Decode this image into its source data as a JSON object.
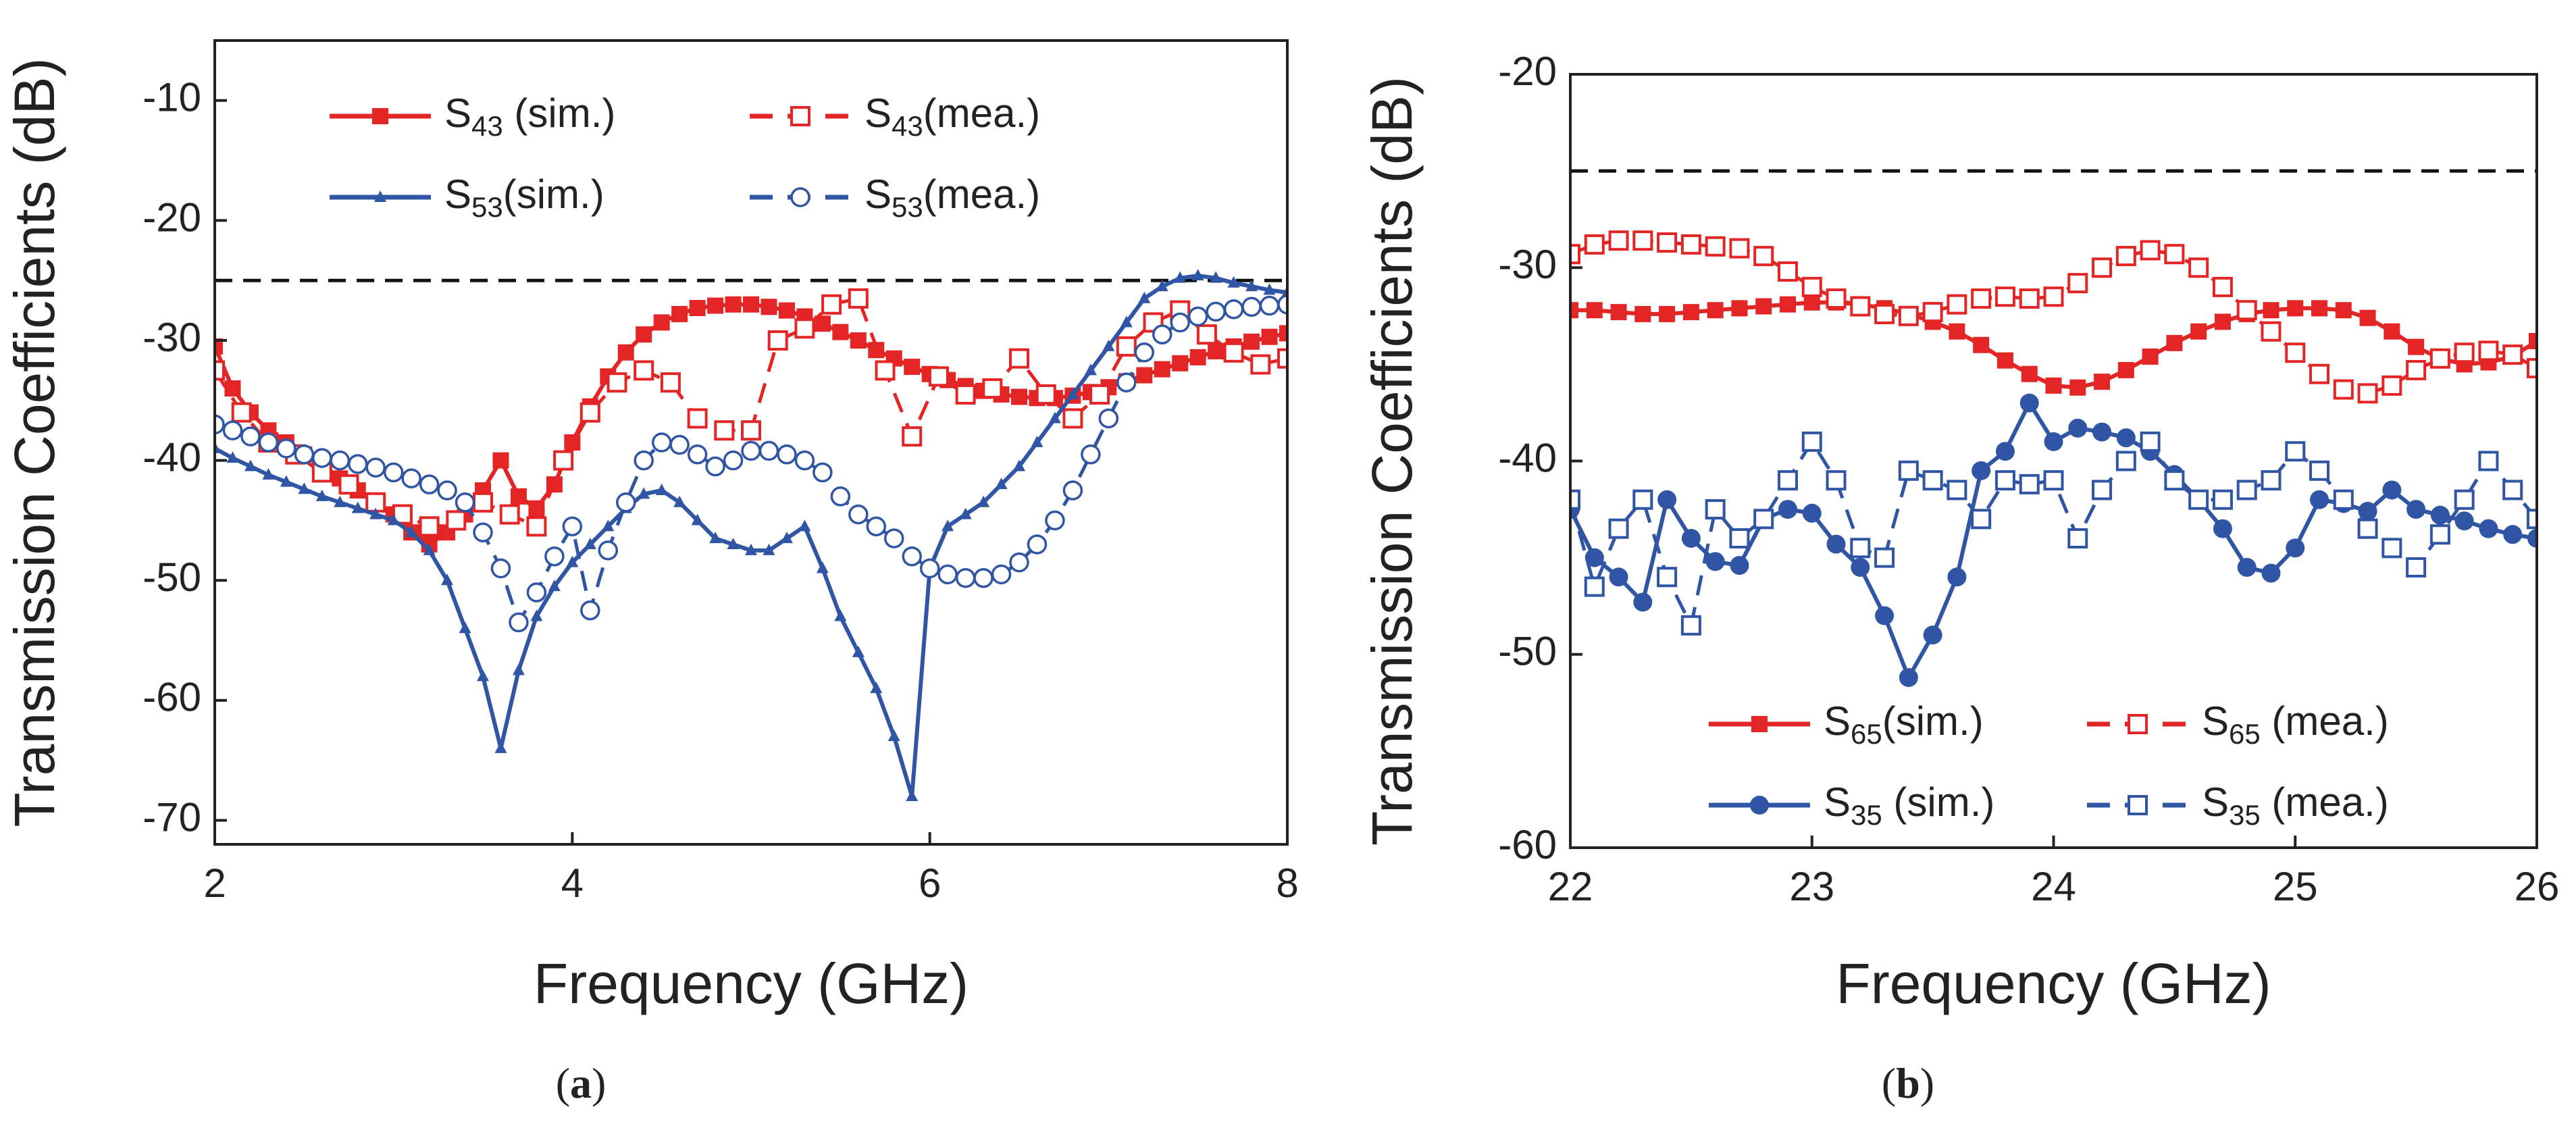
{
  "chart_data": [
    {
      "type": "line",
      "panel_label": "(a)",
      "panel_letter": "a",
      "xlabel": "Frequency (GHz)",
      "ylabel": "Transmission Coefficients (dB)",
      "xlim": [
        2,
        8
      ],
      "ylim": [
        -72,
        -5
      ],
      "xticks": [
        2,
        4,
        6,
        8
      ],
      "yticks": [
        -70,
        -60,
        -50,
        -40,
        -30,
        -20,
        -10
      ],
      "reference_line": {
        "y": -25,
        "style": "dashed",
        "color": "#111111"
      },
      "legend_position": "top",
      "series": [
        {
          "name": "S43 (sim.)",
          "label_main": "S",
          "label_sub": "43",
          "label_tail": " (sim.)",
          "color": "#e32525",
          "line": "solid",
          "marker": "square-filled",
          "x": [
            2,
            2.1,
            2.2,
            2.3,
            2.4,
            2.5,
            2.6,
            2.7,
            2.8,
            2.9,
            3,
            3.1,
            3.2,
            3.3,
            3.4,
            3.5,
            3.6,
            3.7,
            3.8,
            3.9,
            4,
            4.1,
            4.2,
            4.3,
            4.4,
            4.5,
            4.6,
            4.7,
            4.8,
            4.9,
            5,
            5.1,
            5.2,
            5.3,
            5.4,
            5.5,
            5.6,
            5.7,
            5.8,
            5.9,
            6,
            6.1,
            6.2,
            6.3,
            6.4,
            6.5,
            6.6,
            6.7,
            6.8,
            6.9,
            7,
            7.1,
            7.2,
            7.3,
            7.4,
            7.5,
            7.6,
            7.7,
            7.8,
            7.9,
            8
          ],
          "y": [
            -30.5,
            -34,
            -36,
            -37.5,
            -38.5,
            -39.5,
            -40.5,
            -41.5,
            -42.5,
            -43.5,
            -44.5,
            -46,
            -47,
            -46,
            -44.5,
            -42.5,
            -40,
            -43,
            -44,
            -42,
            -38.5,
            -35.5,
            -33,
            -31,
            -29.5,
            -28.5,
            -27.8,
            -27.3,
            -27.1,
            -27,
            -27,
            -27.2,
            -27.5,
            -28,
            -28.6,
            -29.3,
            -30,
            -30.8,
            -31.5,
            -32.2,
            -32.8,
            -33.3,
            -33.8,
            -34.2,
            -34.5,
            -34.7,
            -34.8,
            -34.8,
            -34.6,
            -34.3,
            -33.9,
            -33.4,
            -32.9,
            -32.4,
            -31.9,
            -31.4,
            -30.9,
            -30.5,
            -30.1,
            -29.7,
            -29.4
          ]
        },
        {
          "name": "S43(mea.)",
          "label_main": "S",
          "label_sub": "43",
          "label_tail": "(mea.)",
          "color": "#e32525",
          "line": "dashed",
          "marker": "square-open",
          "x": [
            2,
            2.15,
            2.3,
            2.45,
            2.6,
            2.75,
            2.9,
            3.05,
            3.2,
            3.35,
            3.5,
            3.65,
            3.8,
            3.95,
            4.1,
            4.25,
            4.4,
            4.55,
            4.7,
            4.85,
            5,
            5.15,
            5.3,
            5.45,
            5.6,
            5.75,
            5.9,
            6.05,
            6.2,
            6.35,
            6.5,
            6.65,
            6.8,
            6.95,
            7.1,
            7.25,
            7.4,
            7.55,
            7.7,
            7.85,
            8
          ],
          "y": [
            -32.5,
            -36,
            -38.5,
            -39.5,
            -41,
            -42,
            -43.5,
            -44.5,
            -45.5,
            -45,
            -43.5,
            -44.5,
            -45.5,
            -40,
            -36,
            -33.5,
            -32.5,
            -33.5,
            -36.5,
            -37.5,
            -37.5,
            -30,
            -29,
            -27,
            -26.5,
            -32.5,
            -38,
            -33,
            -34.5,
            -34,
            -31.5,
            -34.5,
            -36.5,
            -34.5,
            -30.5,
            -28.5,
            -27.5,
            -29.5,
            -31,
            -32,
            -31.5
          ]
        },
        {
          "name": "S53(sim.)",
          "label_main": "S",
          "label_sub": "53",
          "label_tail": "(sim.)",
          "color": "#2f55a4",
          "line": "solid",
          "marker": "triangle-small",
          "x": [
            2,
            2.1,
            2.2,
            2.3,
            2.4,
            2.5,
            2.6,
            2.7,
            2.8,
            2.9,
            3,
            3.1,
            3.2,
            3.3,
            3.4,
            3.5,
            3.6,
            3.7,
            3.8,
            3.9,
            4,
            4.1,
            4.2,
            4.3,
            4.4,
            4.5,
            4.6,
            4.7,
            4.8,
            4.9,
            5,
            5.1,
            5.2,
            5.3,
            5.4,
            5.5,
            5.6,
            5.7,
            5.8,
            5.9,
            6,
            6.1,
            6.2,
            6.3,
            6.4,
            6.5,
            6.6,
            6.7,
            6.8,
            6.9,
            7,
            7.1,
            7.2,
            7.3,
            7.4,
            7.5,
            7.6,
            7.7,
            7.8,
            7.9,
            8
          ],
          "y": [
            -39,
            -39.8,
            -40.5,
            -41.2,
            -41.8,
            -42.4,
            -43,
            -43.5,
            -44,
            -44.5,
            -45,
            -46,
            -47.5,
            -50,
            -54,
            -58,
            -64,
            -57.5,
            -53,
            -50.5,
            -48.5,
            -47,
            -45.5,
            -44,
            -42.8,
            -42.5,
            -43.5,
            -45,
            -46.5,
            -47,
            -47.5,
            -47.5,
            -46.5,
            -45.5,
            -49,
            -53,
            -56,
            -59,
            -63,
            -68,
            -49,
            -45.5,
            -44.5,
            -43.5,
            -42,
            -40.5,
            -38.5,
            -36.5,
            -34.5,
            -32.5,
            -30.5,
            -28.5,
            -26.5,
            -25.5,
            -24.8,
            -24.6,
            -24.8,
            -25.2,
            -25.5,
            -25.8,
            -26
          ]
        },
        {
          "name": "S53(mea.)",
          "label_main": "S",
          "label_sub": "53",
          "label_tail": "(mea.)",
          "color": "#2f55a4",
          "line": "dashed",
          "marker": "circle-open",
          "x": [
            2,
            2.1,
            2.2,
            2.3,
            2.4,
            2.5,
            2.6,
            2.7,
            2.8,
            2.9,
            3,
            3.1,
            3.2,
            3.3,
            3.4,
            3.5,
            3.6,
            3.7,
            3.8,
            3.9,
            4,
            4.1,
            4.2,
            4.3,
            4.4,
            4.5,
            4.6,
            4.7,
            4.8,
            4.9,
            5,
            5.1,
            5.2,
            5.3,
            5.4,
            5.5,
            5.6,
            5.7,
            5.8,
            5.9,
            6,
            6.1,
            6.2,
            6.3,
            6.4,
            6.5,
            6.6,
            6.7,
            6.8,
            6.9,
            7,
            7.1,
            7.2,
            7.3,
            7.4,
            7.5,
            7.6,
            7.7,
            7.8,
            7.9,
            8
          ],
          "y": [
            -37,
            -37.5,
            -38,
            -38.5,
            -39,
            -39.5,
            -39.8,
            -40,
            -40.3,
            -40.6,
            -41,
            -41.5,
            -42,
            -42.5,
            -43.5,
            -46,
            -49,
            -53.5,
            -51,
            -48,
            -45.5,
            -52.5,
            -47.5,
            -43.5,
            -40,
            -38.5,
            -38.7,
            -39.5,
            -40.5,
            -40,
            -39.2,
            -39.2,
            -39.5,
            -40,
            -41,
            -43,
            -44.5,
            -45.5,
            -46.5,
            -48,
            -49,
            -49.5,
            -49.8,
            -49.8,
            -49.5,
            -48.5,
            -47,
            -45,
            -42.5,
            -39.5,
            -36.5,
            -33.5,
            -31,
            -29.5,
            -28.5,
            -28,
            -27.6,
            -27.4,
            -27.2,
            -27.1,
            -27
          ]
        }
      ]
    },
    {
      "type": "line",
      "panel_label": "(b)",
      "panel_letter": "b",
      "xlabel": "Frequency (GHz)",
      "ylabel": "Transmission Coefficients (dB)",
      "xlim": [
        22,
        26
      ],
      "ylim": [
        -60,
        -20
      ],
      "xticks": [
        22,
        23,
        24,
        25,
        26
      ],
      "yticks": [
        -60,
        -50,
        -40,
        -30,
        -20
      ],
      "reference_line": {
        "y": -25,
        "style": "dashed",
        "color": "#111111"
      },
      "legend_position": "bottom",
      "series": [
        {
          "name": "S65(sim.)",
          "label_main": "S",
          "label_sub": "65",
          "label_tail": "(sim.)",
          "color": "#e32525",
          "line": "solid",
          "marker": "square-filled",
          "x": [
            22,
            22.1,
            22.2,
            22.3,
            22.4,
            22.5,
            22.6,
            22.7,
            22.8,
            22.9,
            23,
            23.1,
            23.2,
            23.3,
            23.4,
            23.5,
            23.6,
            23.7,
            23.8,
            23.9,
            24,
            24.1,
            24.2,
            24.3,
            24.4,
            24.5,
            24.6,
            24.7,
            24.8,
            24.9,
            25,
            25.1,
            25.2,
            25.3,
            25.4,
            25.5,
            25.6,
            25.7,
            25.8,
            25.9,
            26
          ],
          "y": [
            -32.2,
            -32.2,
            -32.3,
            -32.4,
            -32.4,
            -32.3,
            -32.2,
            -32.1,
            -32,
            -31.9,
            -31.8,
            -31.8,
            -31.9,
            -32.1,
            -32.4,
            -32.8,
            -33.3,
            -34,
            -34.8,
            -35.5,
            -36.1,
            -36.2,
            -35.9,
            -35.3,
            -34.6,
            -33.9,
            -33.3,
            -32.8,
            -32.4,
            -32.2,
            -32.1,
            -32.1,
            -32.2,
            -32.6,
            -33.3,
            -34.1,
            -34.7,
            -35,
            -34.9,
            -34.6,
            -33.8
          ]
        },
        {
          "name": "S65 (mea.)",
          "label_main": "S",
          "label_sub": "65",
          "label_tail": " (mea.)",
          "color": "#e32525",
          "line": "dashed",
          "marker": "square-open",
          "x": [
            22,
            22.1,
            22.2,
            22.3,
            22.4,
            22.5,
            22.6,
            22.7,
            22.8,
            22.9,
            23,
            23.1,
            23.2,
            23.3,
            23.4,
            23.5,
            23.6,
            23.7,
            23.8,
            23.9,
            24,
            24.1,
            24.2,
            24.3,
            24.4,
            24.5,
            24.6,
            24.7,
            24.8,
            24.9,
            25,
            25.1,
            25.2,
            25.3,
            25.4,
            25.5,
            25.6,
            25.7,
            25.8,
            25.9,
            26
          ],
          "y": [
            -29.3,
            -28.8,
            -28.6,
            -28.6,
            -28.7,
            -28.8,
            -28.9,
            -29,
            -29.4,
            -30.2,
            -31,
            -31.6,
            -32,
            -32.4,
            -32.5,
            -32.3,
            -31.9,
            -31.6,
            -31.5,
            -31.6,
            -31.5,
            -30.8,
            -30,
            -29.4,
            -29.1,
            -29.3,
            -30,
            -31,
            -32.2,
            -33.3,
            -34.4,
            -35.5,
            -36.3,
            -36.5,
            -36.1,
            -35.3,
            -34.7,
            -34.4,
            -34.3,
            -34.5,
            -35.2
          ]
        },
        {
          "name": "S35 (sim.)",
          "label_main": "S",
          "label_sub": "35",
          "label_tail": " (sim.)",
          "color": "#2f55a4",
          "line": "solid",
          "marker": "circle-filled",
          "x": [
            22,
            22.1,
            22.2,
            22.3,
            22.4,
            22.5,
            22.6,
            22.7,
            22.8,
            22.9,
            23,
            23.1,
            23.2,
            23.3,
            23.4,
            23.5,
            23.6,
            23.7,
            23.8,
            23.9,
            24,
            24.1,
            24.2,
            24.3,
            24.4,
            24.5,
            24.6,
            24.7,
            24.8,
            24.9,
            25,
            25.1,
            25.2,
            25.3,
            25.4,
            25.5,
            25.6,
            25.7,
            25.8,
            25.9,
            26
          ],
          "y": [
            -42.5,
            -45,
            -46,
            -47.3,
            -42,
            -44,
            -45.2,
            -45.4,
            -43,
            -42.5,
            -42.7,
            -44.3,
            -45.5,
            -48,
            -51.2,
            -49,
            -46,
            -40.5,
            -39.5,
            -37,
            -39,
            -38.3,
            -38.5,
            -38.8,
            -39.5,
            -40.7,
            -42,
            -43.5,
            -45.5,
            -45.8,
            -44.5,
            -42,
            -42.2,
            -42.6,
            -41.5,
            -42.5,
            -42.8,
            -43.1,
            -43.5,
            -43.8,
            -44
          ]
        },
        {
          "name": "S35 (mea.)",
          "label_main": "S",
          "label_sub": "35",
          "label_tail": " (mea.)",
          "color": "#2f55a4",
          "line": "dashed",
          "marker": "square-open",
          "x": [
            22,
            22.1,
            22.2,
            22.3,
            22.4,
            22.5,
            22.6,
            22.7,
            22.8,
            22.9,
            23,
            23.1,
            23.2,
            23.3,
            23.4,
            23.5,
            23.6,
            23.7,
            23.8,
            23.9,
            24,
            24.1,
            24.2,
            24.3,
            24.4,
            24.5,
            24.6,
            24.7,
            24.8,
            24.9,
            25,
            25.1,
            25.2,
            25.3,
            25.4,
            25.5,
            25.6,
            25.7,
            25.8,
            25.9,
            26
          ],
          "y": [
            -42,
            -46.5,
            -43.5,
            -42,
            -46,
            -48.5,
            -42.5,
            -44,
            -43,
            -41,
            -39,
            -41,
            -44.5,
            -45,
            -40.5,
            -41,
            -41.5,
            -43,
            -41,
            -41.2,
            -41,
            -44,
            -41.5,
            -40,
            -39,
            -41,
            -42,
            -42,
            -41.5,
            -41,
            -39.5,
            -40.5,
            -42,
            -43.5,
            -44.5,
            -45.5,
            -43.8,
            -42,
            -40,
            -41.5,
            -43
          ]
        }
      ]
    }
  ]
}
